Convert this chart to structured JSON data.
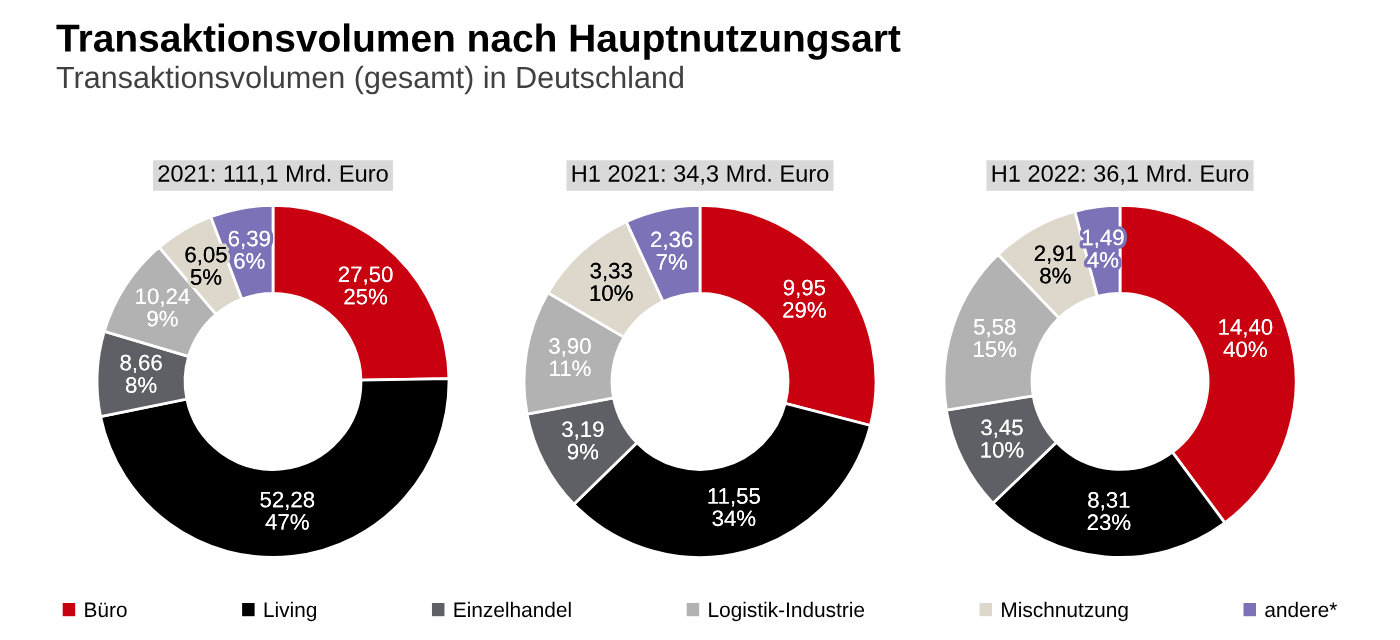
{
  "chart_data": [
    {
      "type": "donut",
      "title": "Transaktionsvolumen nach Hauptnutzungsart",
      "subtitle": "Transaktionsvolumen (gesamt) in Deutschland",
      "legend": "bottom",
      "annotations": [
        "2021: 111,1 Mrd. Euro"
      ],
      "categories": [
        "Büro",
        "Living",
        "Einzelhandel",
        "Logistik-Industrie",
        "Mischnutzung",
        "andere*"
      ],
      "values": [
        27.5,
        52.28,
        8.66,
        10.24,
        6.05,
        6.39
      ],
      "value_labels": [
        "27,50\n25%",
        "52,28\n47%",
        "8,66\n8%",
        "10,24\n9%",
        "6,05\n5%",
        "6,39\n6%"
      ],
      "colors": [
        "#c8000f",
        "#000000",
        "#5f6065",
        "#b2b2b2",
        "#ddd8cb",
        "#7b72b8"
      ]
    },
    {
      "type": "donut",
      "annotations": [
        "H1 2021: 34,3 Mrd. Euro"
      ],
      "values": [
        9.95,
        11.55,
        3.19,
        3.9,
        3.33,
        2.36
      ],
      "value_labels": [
        "9,95\n29%",
        "11,55\n34%",
        "3,19\n9%",
        "3,90\n11%",
        "3,33\n10%",
        "2,36\n7%"
      ],
      "colors": [
        "#c8000f",
        "#000000",
        "#5f6065",
        "#b2b2b2",
        "#ddd8cb",
        "#7b72b8"
      ]
    },
    {
      "type": "donut",
      "annotations": [
        "H1 2022: 36,1 Mrd. Euro"
      ],
      "values": [
        14.4,
        8.31,
        3.45,
        5.58,
        2.91,
        1.49
      ],
      "value_labels": [
        "14,40\n40%",
        "8,31\n23%",
        "3,45\n10%",
        "5,58\n15%",
        "2,91\n8%",
        "1,49\n4%"
      ],
      "colors": [
        "#c8000f",
        "#000000",
        "#5f6065",
        "#b2b2b2",
        "#ddd8cb",
        "#7b72b8"
      ]
    }
  ]
}
